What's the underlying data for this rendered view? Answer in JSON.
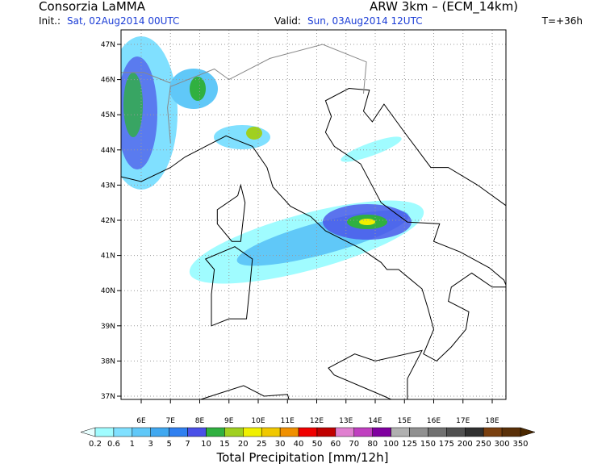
{
  "header": {
    "title": "Consorzia LaMMA",
    "model": "ARW 3km – (ECM_14km)",
    "init_label": "Init.:",
    "init_time": "Sat, 02Aug2014 00UTC",
    "valid_label": "Valid:",
    "valid_time": "Sun, 03Aug2014 12UTC",
    "lead_time": "T=+36h"
  },
  "map": {
    "lat_labels": [
      "47N",
      "46N",
      "45N",
      "44N",
      "43N",
      "42N",
      "41N",
      "40N",
      "39N",
      "38N",
      "37N"
    ],
    "lon_labels": [
      "6E",
      "7E",
      "8E",
      "9E",
      "10E",
      "11E",
      "12E",
      "13E",
      "14E",
      "15E",
      "16E",
      "17E",
      "18E"
    ]
  },
  "colorbar": {
    "title": "Total Precipitation [mm/12h]",
    "labels": [
      "0.2",
      "0.6",
      "1",
      "3",
      "5",
      "7",
      "10",
      "15",
      "20",
      "25",
      "30",
      "40",
      "50",
      "60",
      "70",
      "80",
      "100",
      "125",
      "150",
      "175",
      "200",
      "250",
      "300",
      "350"
    ],
    "colors": [
      "#a0fcff",
      "#80e0ff",
      "#60c8f8",
      "#40a8f0",
      "#3080f0",
      "#4a50e8",
      "#30b040",
      "#a0d020",
      "#f0f000",
      "#f0c800",
      "#f09000",
      "#f00000",
      "#c00000",
      "#e080d0",
      "#c040c0",
      "#8000a0",
      "#b0b0b0",
      "#909090",
      "#707070",
      "#505050",
      "#303030",
      "#7a4010",
      "#5a3008"
    ],
    "under_color": "#e8ffff",
    "over_color": "#4a2800"
  }
}
